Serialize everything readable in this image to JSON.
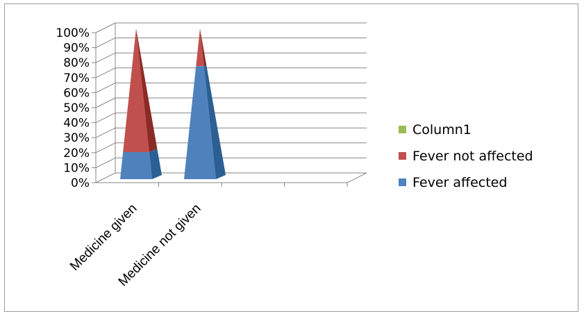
{
  "chart_data": {
    "type": "bar",
    "style": "3d-stacked-100-cone",
    "categories": [
      "Medicine given",
      "Medicine not given"
    ],
    "y_ticks": [
      "0%",
      "10%",
      "20%",
      "30%",
      "40%",
      "50%",
      "60%",
      "70%",
      "80%",
      "90%",
      "100%"
    ],
    "ylim": [
      0,
      100
    ],
    "grid": true,
    "legend_position": "right",
    "series": [
      {
        "name": "Fever affected",
        "values": [
          18,
          75
        ],
        "color": "#4f81bd",
        "side_color": "#2c5f93"
      },
      {
        "name": "Fever not affected",
        "values": [
          82,
          25
        ],
        "color": "#c0504d",
        "side_color": "#8c2a27"
      },
      {
        "name": "Column1",
        "values": [
          0,
          0
        ],
        "color": "#9bbb59",
        "side_color": "#76923c"
      }
    ]
  }
}
